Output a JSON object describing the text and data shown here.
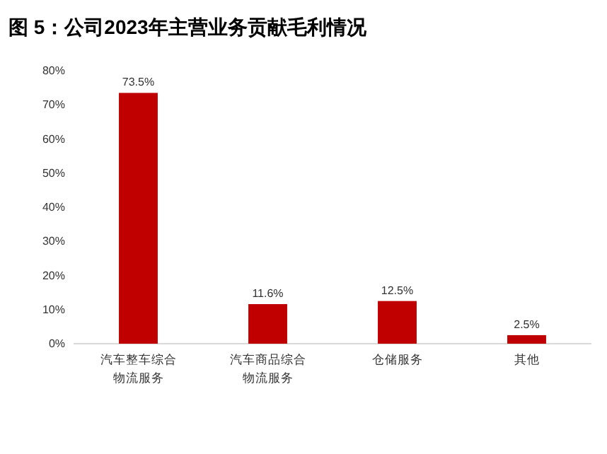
{
  "chart_data": {
    "type": "bar",
    "title": "图 5：公司2023年主营业务贡献毛利情况",
    "categories": [
      "汽车整车综合物流服务",
      "汽车商品综合物流服务",
      "仓储服务",
      "其他"
    ],
    "values": [
      73.5,
      11.6,
      12.5,
      2.5
    ],
    "color": "#c00000",
    "value_labels": [
      "73.5%",
      "11.6%",
      "12.5%",
      "2.5%"
    ],
    "ylim": [
      0,
      80
    ],
    "yticks": [
      {
        "value": 0,
        "label": "0%"
      },
      {
        "value": 10,
        "label": "10%"
      },
      {
        "value": 20,
        "label": "20%"
      },
      {
        "value": 30,
        "label": "30%"
      },
      {
        "value": 40,
        "label": "40%"
      },
      {
        "value": 50,
        "label": "50%"
      },
      {
        "value": 60,
        "label": "60%"
      },
      {
        "value": 70,
        "label": "70%"
      },
      {
        "value": 80,
        "label": "80%"
      }
    ]
  }
}
